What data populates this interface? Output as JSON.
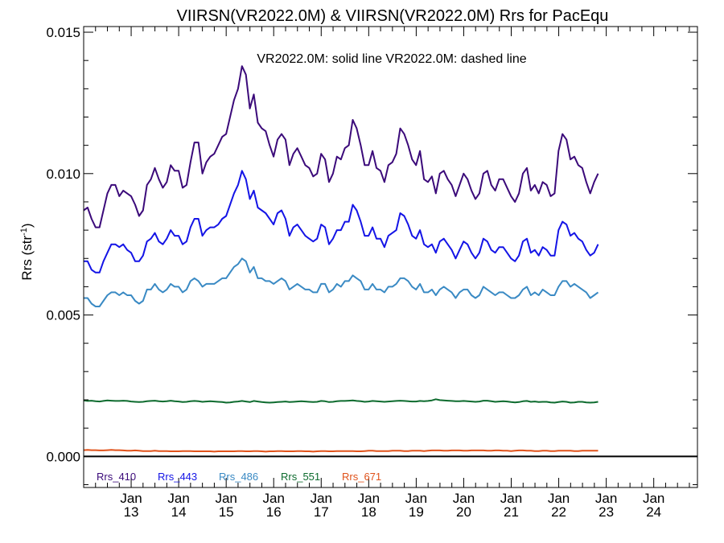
{
  "chart_data": {
    "type": "line",
    "title": "VIIRSN(VR2022.0M) & VIIRSN(VR2022.0M)  Rrs for PacEqu",
    "ylabel_main": "Rrs (str",
    "ylabel_sup": "-1",
    "ylabel_close": ")",
    "annotation": "VR2022.0M: solid line   VR2022.0M: dashed line",
    "ylim": [
      -0.0011,
      0.0152
    ],
    "xlim": [
      2012.0,
      2024.92
    ],
    "y_ticks": [
      0.0,
      0.005,
      0.01,
      0.015
    ],
    "y_tick_labels": [
      "0.000",
      "0.005",
      "0.010",
      "0.015"
    ],
    "x_ticks": [
      2013.0,
      2014.0,
      2015.0,
      2016.0,
      2017.0,
      2018.0,
      2019.0,
      2020.0,
      2021.0,
      2022.0,
      2023.0,
      2024.0
    ],
    "x_tick_month": "Jan",
    "x_tick_years": [
      "13",
      "14",
      "15",
      "16",
      "17",
      "18",
      "19",
      "20",
      "21",
      "22",
      "23",
      "24"
    ],
    "zero_line": 0.0,
    "legend_placement": "bottom-left",
    "series": [
      {
        "name": "Rrs_410",
        "color": "#3b0a7a",
        "x_start": 2012.0,
        "x_step": 0.0833,
        "values": [
          0.0087,
          0.0088,
          0.0084,
          0.0081,
          0.0081,
          0.0087,
          0.0093,
          0.0096,
          0.0096,
          0.0092,
          0.0094,
          0.0093,
          0.0092,
          0.0089,
          0.0085,
          0.0087,
          0.0096,
          0.0098,
          0.0102,
          0.0098,
          0.0095,
          0.0097,
          0.0103,
          0.0101,
          0.0101,
          0.0095,
          0.0096,
          0.0104,
          0.0111,
          0.0111,
          0.01,
          0.0104,
          0.0106,
          0.0107,
          0.011,
          0.0113,
          0.0114,
          0.012,
          0.0126,
          0.013,
          0.0138,
          0.0135,
          0.0123,
          0.0128,
          0.0118,
          0.0116,
          0.0115,
          0.011,
          0.0106,
          0.0112,
          0.0114,
          0.0112,
          0.0103,
          0.0107,
          0.0109,
          0.0106,
          0.0103,
          0.0102,
          0.0099,
          0.01,
          0.0107,
          0.0105,
          0.0097,
          0.01,
          0.0106,
          0.0105,
          0.0109,
          0.011,
          0.0119,
          0.0116,
          0.011,
          0.0103,
          0.0103,
          0.0108,
          0.0102,
          0.0101,
          0.0097,
          0.0103,
          0.0104,
          0.0107,
          0.0116,
          0.0114,
          0.011,
          0.0105,
          0.0103,
          0.0108,
          0.0098,
          0.0097,
          0.0099,
          0.0093,
          0.01,
          0.0101,
          0.0098,
          0.0096,
          0.0092,
          0.0096,
          0.01,
          0.0098,
          0.0094,
          0.0091,
          0.0093,
          0.01,
          0.0101,
          0.0096,
          0.0094,
          0.0098,
          0.0098,
          0.0095,
          0.0092,
          0.009,
          0.0093,
          0.01,
          0.0102,
          0.0094,
          0.0096,
          0.0093,
          0.0097,
          0.0096,
          0.0092,
          0.0093,
          0.0108,
          0.0114,
          0.0112,
          0.0105,
          0.0106,
          0.0103,
          0.0102,
          0.0097,
          0.0093,
          0.0097,
          0.01
        ]
      },
      {
        "name": "Rrs_443",
        "color": "#1414e6",
        "x_start": 2012.0,
        "x_step": 0.0833,
        "values": [
          0.0069,
          0.0069,
          0.0066,
          0.0065,
          0.0065,
          0.0069,
          0.0072,
          0.0075,
          0.0075,
          0.0074,
          0.0075,
          0.0073,
          0.0072,
          0.0069,
          0.0069,
          0.0071,
          0.0076,
          0.0077,
          0.0079,
          0.0076,
          0.0075,
          0.0077,
          0.008,
          0.0078,
          0.0078,
          0.0075,
          0.0076,
          0.0081,
          0.0084,
          0.0084,
          0.0078,
          0.008,
          0.0081,
          0.0081,
          0.0082,
          0.0084,
          0.0085,
          0.0089,
          0.0093,
          0.0096,
          0.0101,
          0.0098,
          0.0091,
          0.0094,
          0.0088,
          0.0087,
          0.0086,
          0.0084,
          0.0082,
          0.0086,
          0.0087,
          0.0084,
          0.0078,
          0.0081,
          0.0082,
          0.008,
          0.0078,
          0.0077,
          0.0076,
          0.0077,
          0.0082,
          0.0081,
          0.0075,
          0.0077,
          0.008,
          0.008,
          0.0083,
          0.0083,
          0.0089,
          0.0087,
          0.0083,
          0.0078,
          0.0078,
          0.0081,
          0.0077,
          0.0077,
          0.0074,
          0.0078,
          0.0079,
          0.008,
          0.0086,
          0.0085,
          0.0082,
          0.0078,
          0.0077,
          0.008,
          0.0075,
          0.0074,
          0.0075,
          0.0072,
          0.0076,
          0.0077,
          0.0075,
          0.0073,
          0.007,
          0.0073,
          0.0076,
          0.0075,
          0.0072,
          0.007,
          0.0072,
          0.0077,
          0.0076,
          0.0073,
          0.0072,
          0.0074,
          0.0074,
          0.0072,
          0.007,
          0.0069,
          0.0071,
          0.0076,
          0.0077,
          0.0072,
          0.0073,
          0.0071,
          0.0074,
          0.0073,
          0.0071,
          0.0071,
          0.008,
          0.0083,
          0.0082,
          0.0078,
          0.0079,
          0.0077,
          0.0076,
          0.0073,
          0.0071,
          0.0072,
          0.0075
        ]
      },
      {
        "name": "Rrs_486",
        "color": "#3a8ac4",
        "x_start": 2012.0,
        "x_step": 0.0833,
        "values": [
          0.0056,
          0.0056,
          0.0054,
          0.0053,
          0.0053,
          0.0055,
          0.0057,
          0.0058,
          0.0058,
          0.0057,
          0.0058,
          0.0057,
          0.0057,
          0.0055,
          0.0054,
          0.0055,
          0.0059,
          0.0059,
          0.0061,
          0.0059,
          0.0058,
          0.0059,
          0.0061,
          0.006,
          0.006,
          0.0058,
          0.0059,
          0.0062,
          0.0063,
          0.0062,
          0.006,
          0.0061,
          0.0061,
          0.0061,
          0.0062,
          0.0063,
          0.0063,
          0.0065,
          0.0067,
          0.0068,
          0.007,
          0.0069,
          0.0065,
          0.0067,
          0.0063,
          0.0063,
          0.0062,
          0.0062,
          0.0061,
          0.0062,
          0.0063,
          0.0062,
          0.0059,
          0.006,
          0.0061,
          0.006,
          0.0059,
          0.0059,
          0.0058,
          0.0058,
          0.0061,
          0.0061,
          0.0058,
          0.0059,
          0.0061,
          0.006,
          0.0062,
          0.0062,
          0.0064,
          0.0063,
          0.0062,
          0.0059,
          0.0059,
          0.0061,
          0.0059,
          0.0059,
          0.0058,
          0.006,
          0.006,
          0.0061,
          0.0063,
          0.0063,
          0.0062,
          0.006,
          0.0059,
          0.0061,
          0.0058,
          0.0058,
          0.0059,
          0.0057,
          0.0059,
          0.006,
          0.0059,
          0.0058,
          0.0056,
          0.0058,
          0.0059,
          0.0059,
          0.0057,
          0.0056,
          0.0057,
          0.006,
          0.0059,
          0.0058,
          0.0057,
          0.0058,
          0.0058,
          0.0057,
          0.0056,
          0.0056,
          0.0057,
          0.0059,
          0.006,
          0.0057,
          0.0058,
          0.0057,
          0.0059,
          0.0058,
          0.0057,
          0.0057,
          0.006,
          0.0062,
          0.0062,
          0.006,
          0.0061,
          0.006,
          0.0059,
          0.0058,
          0.0056,
          0.0057,
          0.0058
        ]
      },
      {
        "name": "Rrs_551",
        "color": "#0d6b2e",
        "x_start": 2012.0,
        "x_step": 0.0833,
        "values": [
          0.00198,
          0.00196,
          0.00197,
          0.00195,
          0.00194,
          0.00196,
          0.00198,
          0.00197,
          0.00196,
          0.00196,
          0.00197,
          0.00196,
          0.00194,
          0.00193,
          0.00192,
          0.00193,
          0.00195,
          0.00196,
          0.00197,
          0.00195,
          0.00194,
          0.00195,
          0.00197,
          0.00195,
          0.00194,
          0.00192,
          0.00193,
          0.00195,
          0.00196,
          0.00195,
          0.00193,
          0.00194,
          0.00195,
          0.00194,
          0.00193,
          0.00192,
          0.0019,
          0.00191,
          0.00193,
          0.00194,
          0.00196,
          0.00194,
          0.00192,
          0.00196,
          0.00194,
          0.00192,
          0.00191,
          0.0019,
          0.00191,
          0.00192,
          0.00193,
          0.00194,
          0.00192,
          0.00193,
          0.00194,
          0.00195,
          0.00194,
          0.00193,
          0.00192,
          0.00193,
          0.00196,
          0.00195,
          0.00192,
          0.00193,
          0.00195,
          0.00196,
          0.00196,
          0.00197,
          0.00198,
          0.00196,
          0.00195,
          0.00193,
          0.00194,
          0.00196,
          0.00195,
          0.00194,
          0.00193,
          0.00194,
          0.00195,
          0.00196,
          0.00197,
          0.00196,
          0.00195,
          0.00194,
          0.00194,
          0.00196,
          0.00195,
          0.00196,
          0.00198,
          0.00202,
          0.00199,
          0.00198,
          0.00197,
          0.00196,
          0.00195,
          0.00195,
          0.00196,
          0.00195,
          0.00194,
          0.00193,
          0.00194,
          0.00197,
          0.00197,
          0.00195,
          0.00193,
          0.00194,
          0.00195,
          0.00194,
          0.00192,
          0.00191,
          0.00192,
          0.00195,
          0.00196,
          0.00193,
          0.00194,
          0.00192,
          0.00193,
          0.00193,
          0.00191,
          0.0019,
          0.00192,
          0.00194,
          0.00193,
          0.0019,
          0.00191,
          0.00193,
          0.00193,
          0.00191,
          0.0019,
          0.00191,
          0.00193
        ]
      },
      {
        "name": "Rrs_671",
        "color": "#e0521a",
        "x_start": 2012.0,
        "x_step": 0.0833,
        "values": [
          0.00022,
          0.00023,
          0.00022,
          0.00022,
          0.00021,
          0.00021,
          0.00022,
          0.00023,
          0.00022,
          0.00022,
          0.00021,
          0.0002,
          0.0002,
          0.00021,
          0.0002,
          0.00019,
          0.00019,
          0.00019,
          0.0002,
          0.00019,
          0.00019,
          0.00019,
          0.00018,
          0.00018,
          0.00018,
          0.00019,
          0.00019,
          0.00019,
          0.00018,
          0.00018,
          0.00018,
          0.00018,
          0.00018,
          0.00017,
          0.00018,
          0.00018,
          0.00018,
          0.00018,
          0.00018,
          0.00019,
          0.00019,
          0.00018,
          0.00018,
          0.00019,
          0.00019,
          0.00018,
          0.00017,
          0.00018,
          0.00018,
          0.00019,
          0.00019,
          0.00018,
          0.00018,
          0.00018,
          0.00019,
          0.00019,
          0.00018,
          0.00018,
          0.00017,
          0.00018,
          0.00019,
          0.00019,
          0.00018,
          0.00018,
          0.00019,
          0.00019,
          0.00019,
          0.00019,
          0.00019,
          0.00018,
          0.00018,
          0.00019,
          0.0002,
          0.0002,
          0.00019,
          0.00019,
          0.00019,
          0.00019,
          0.0002,
          0.0002,
          0.0002,
          0.00019,
          0.00019,
          0.0002,
          0.0002,
          0.0002,
          0.00019,
          0.0002,
          0.00021,
          0.00021,
          0.00021,
          0.0002,
          0.0002,
          0.00021,
          0.00021,
          0.00021,
          0.0002,
          0.0002,
          0.00021,
          0.00021,
          0.00021,
          0.00021,
          0.0002,
          0.0002,
          0.00021,
          0.00021,
          0.0002,
          0.0002,
          0.00019,
          0.0002,
          0.00021,
          0.00021,
          0.0002,
          0.0002,
          0.00019,
          0.00019,
          0.0002,
          0.0002,
          0.00019,
          0.00019,
          0.0002,
          0.0002,
          0.0002,
          0.0002,
          0.00019,
          0.00019,
          0.0002,
          0.0002,
          0.0002,
          0.0002,
          0.0002
        ]
      }
    ]
  }
}
